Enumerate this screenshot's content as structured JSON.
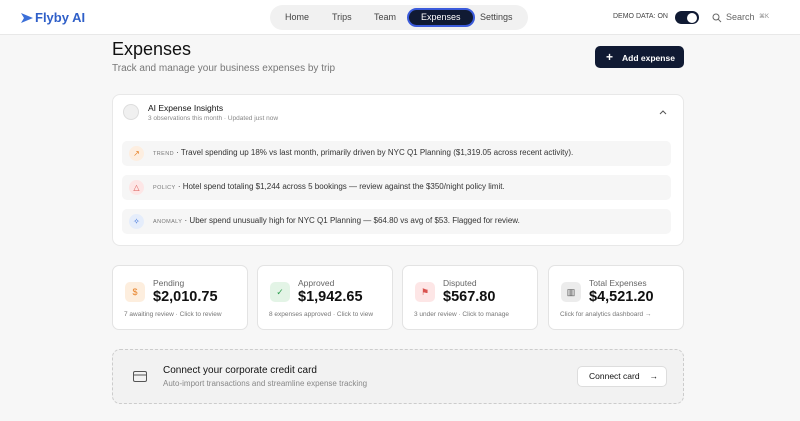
{
  "header": {
    "logo": "Flyby AI",
    "nav": [
      "Home",
      "Trips",
      "Team",
      "Expenses",
      "Settings"
    ],
    "demo": "DEMO DATA: ON",
    "search": "Search",
    "shortcut": "⌘K"
  },
  "page": {
    "title": "Expenses",
    "subtitle": "Track and manage your business expenses by trip",
    "add_button": "Add expense"
  },
  "insights": {
    "title": "AI Expense Insights",
    "subtitle": "3 observations this month · Updated just now",
    "items": [
      {
        "tag": "TREND",
        "text": "· Travel spending up 18% vs last month, primarily driven by NYC Q1 Planning ($1,319.05 across recent activity)."
      },
      {
        "tag": "POLICY",
        "text": "· Hotel spend totaling $1,244 across 5 bookings — review against the $350/night policy limit."
      },
      {
        "tag": "ANOMALY",
        "text": "· Uber spend unusually high for NYC Q1 Planning — $64.80 vs avg of $53. Flagged for review."
      }
    ]
  },
  "cards": [
    {
      "label": "Pending",
      "value": "$2,010.75",
      "note": "7 awaiting review · Click to review"
    },
    {
      "label": "Approved",
      "value": "$1,942.65",
      "note": "8 expenses approved · Click to view"
    },
    {
      "label": "Disputed",
      "value": "$567.80",
      "note": "3 under review · Click to manage"
    },
    {
      "label": "Total Expenses",
      "value": "$4,521.20",
      "note": "Click for analytics dashboard →"
    }
  ],
  "connect": {
    "title": "Connect your corporate credit card",
    "subtitle": "Auto-import transactions and streamline expense tracking",
    "button": "Connect card"
  }
}
